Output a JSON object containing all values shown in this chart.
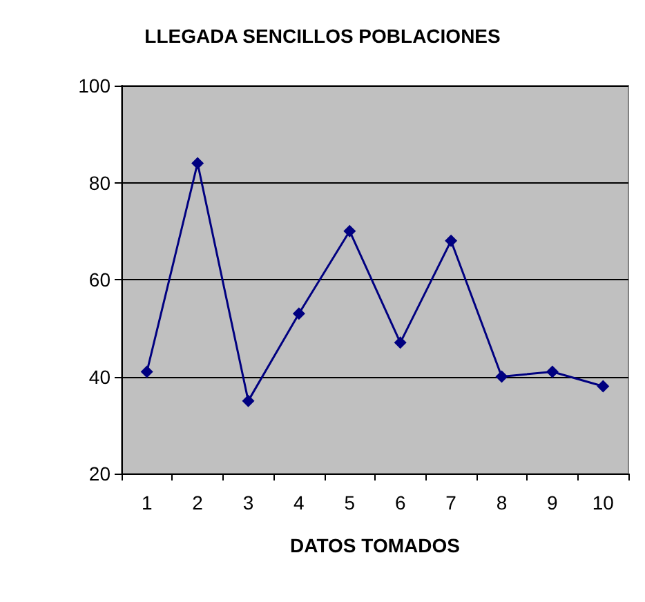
{
  "chart_data": {
    "type": "line",
    "title": "LLEGADA SENCILLOS POBLACIONES",
    "xlabel": "DATOS TOMADOS",
    "categories": [
      "1",
      "2",
      "3",
      "4",
      "5",
      "6",
      "7",
      "8",
      "9",
      "10"
    ],
    "series": [
      {
        "color": "#000080",
        "values": [
          41,
          84,
          35,
          53,
          70,
          47,
          68,
          40,
          41,
          38
        ]
      }
    ],
    "ylim": [
      20,
      100
    ],
    "yticks": [
      20,
      40,
      60,
      80,
      100
    ],
    "grid": "y",
    "marker": "diamond",
    "line_style": "solid"
  }
}
